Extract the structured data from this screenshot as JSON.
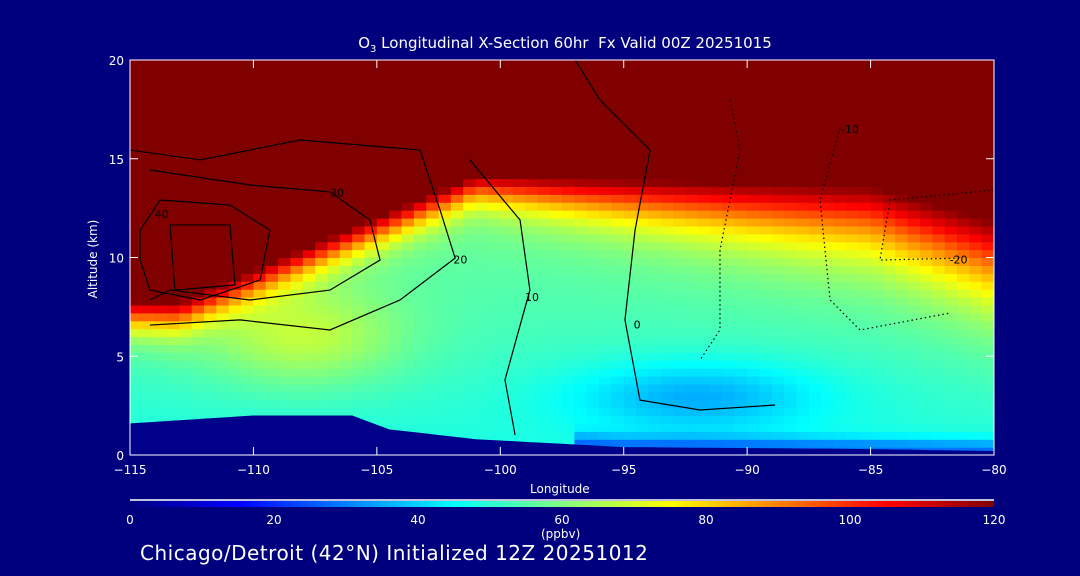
{
  "chart_data": {
    "type": "heatmap",
    "title": {
      "prefix": "O",
      "subscript": "3",
      "rest": " Longitudinal X-Section 60hr  Fx Valid 00Z 20251015"
    },
    "xlabel": "Longitude",
    "ylabel": "Altitude (km)",
    "xlim": [
      -115,
      -80
    ],
    "ylim": [
      0,
      20
    ],
    "xticks": [
      "-115",
      "-110",
      "-105",
      "-100",
      "-95",
      "-90",
      "-85",
      "-80"
    ],
    "xtick_values": [
      -115,
      -110,
      -105,
      -100,
      -95,
      -90,
      -85,
      -80
    ],
    "yticks": [
      "0",
      "5",
      "10",
      "15",
      "20"
    ],
    "ytick_values": [
      0,
      5,
      10,
      15,
      20
    ],
    "colorbar": {
      "label": "(ppbv)",
      "range": [
        0,
        120
      ],
      "ticks": [
        "0",
        "20",
        "40",
        "60",
        "80",
        "100",
        "120"
      ],
      "tick_values": [
        0,
        20,
        40,
        60,
        80,
        100,
        120
      ],
      "stops": [
        [
          0,
          "#000080"
        ],
        [
          15,
          "#0000ff"
        ],
        [
          45,
          "#00ffff"
        ],
        [
          60,
          "#80ff80"
        ],
        [
          75,
          "#ffff00"
        ],
        [
          90,
          "#ff8000"
        ],
        [
          105,
          "#ff0000"
        ],
        [
          120,
          "#800000"
        ]
      ]
    },
    "terrain_km": [
      [
        -115,
        1.6
      ],
      [
        -110,
        2.0
      ],
      [
        -106,
        2.0
      ],
      [
        -104.5,
        1.3
      ],
      [
        -101,
        0.8
      ],
      [
        -95,
        0.4
      ],
      [
        -85,
        0.3
      ],
      [
        -80,
        0.2
      ]
    ],
    "contours": [
      {
        "level": 0,
        "style": "solid",
        "label": "0",
        "label_at": [
          -94.6,
          6.6
        ],
        "points": [
          [
            -96.97,
            20
          ],
          [
            -95.96,
            17.97
          ],
          [
            -93.93,
            15.44
          ],
          [
            -94.54,
            11.39
          ],
          [
            -94.95,
            6.84
          ],
          [
            -94.34,
            2.78
          ],
          [
            -91.91,
            2.28
          ],
          [
            -88.87,
            2.53
          ]
        ]
      },
      {
        "level": 10,
        "style": "solid",
        "label": "10",
        "label_at": [
          -99.0,
          8.0
        ],
        "points": [
          [
            -101.23,
            14.94
          ],
          [
            -99.2,
            11.9
          ],
          [
            -98.8,
            8.35
          ],
          [
            -99.81,
            3.8
          ],
          [
            -99.4,
            1.01
          ]
        ]
      },
      {
        "level": 20,
        "style": "solid",
        "label": "20",
        "label_at": [
          -101.9,
          9.9
        ],
        "points": [
          [
            -115,
            15.44
          ],
          [
            -112.16,
            14.94
          ],
          [
            -108.11,
            15.95
          ],
          [
            -103.25,
            15.44
          ],
          [
            -102.44,
            12.41
          ],
          [
            -101.83,
            9.97
          ],
          [
            -104.06,
            7.85
          ],
          [
            -106.9,
            6.33
          ],
          [
            -110.54,
            6.84
          ],
          [
            -114.19,
            6.58
          ]
        ]
      },
      {
        "level": 30,
        "style": "solid",
        "label": "30",
        "label_at": [
          -106.9,
          13.3
        ],
        "points": [
          [
            -114.19,
            14.43
          ],
          [
            -110.14,
            13.67
          ],
          [
            -106.9,
            13.32
          ],
          [
            -105.28,
            11.9
          ],
          [
            -104.87,
            9.87
          ],
          [
            -106.9,
            8.35
          ],
          [
            -110.14,
            7.85
          ],
          [
            -113.38,
            8.35
          ],
          [
            -114.19,
            7.85
          ]
        ]
      },
      {
        "level": 40,
        "style": "solid",
        "label": "40",
        "label_at": [
          -114.0,
          12.2
        ],
        "points": [
          [
            -114.59,
            11.39
          ],
          [
            -113.78,
            12.91
          ],
          [
            -110.95,
            12.66
          ],
          [
            -109.33,
            11.39
          ],
          [
            -109.73,
            8.86
          ],
          [
            -112.16,
            7.85
          ],
          [
            -114.19,
            8.35
          ],
          [
            -114.59,
            9.87
          ],
          [
            -114.59,
            11.39
          ]
        ]
      },
      {
        "level": 50,
        "style": "solid",
        "label": "",
        "label_at": null,
        "points": [
          [
            -113.38,
            11.65
          ],
          [
            -110.95,
            11.65
          ],
          [
            -110.75,
            8.61
          ],
          [
            -113.18,
            8.35
          ],
          [
            -113.38,
            11.65
          ]
        ]
      },
      {
        "level": -10,
        "style": "dotted",
        "label": "",
        "label_at": null,
        "points": [
          [
            -90.69,
            17.97
          ],
          [
            -90.29,
            15.44
          ],
          [
            -91.1,
            10.38
          ],
          [
            -91.1,
            6.33
          ],
          [
            -91.91,
            4.81
          ]
        ]
      },
      {
        "level": -10,
        "style": "dotted",
        "label": "-10",
        "label_at": [
          -86.2,
          16.5
        ],
        "points": [
          [
            -86.24,
            16.56
          ],
          [
            -87.05,
            12.91
          ],
          [
            -86.64,
            7.85
          ],
          [
            -85.43,
            6.33
          ],
          [
            -81.78,
            7.19
          ]
        ]
      },
      {
        "level": -20,
        "style": "dotted",
        "label": "-20",
        "label_at": [
          -81.8,
          9.9
        ],
        "points": [
          [
            -80,
            13.42
          ],
          [
            -84.21,
            12.91
          ],
          [
            -84.62,
            9.87
          ],
          [
            -81.38,
            9.97
          ]
        ]
      }
    ]
  },
  "footer": "Chicago/Detroit (42°N) Initialized 12Z 20251012"
}
